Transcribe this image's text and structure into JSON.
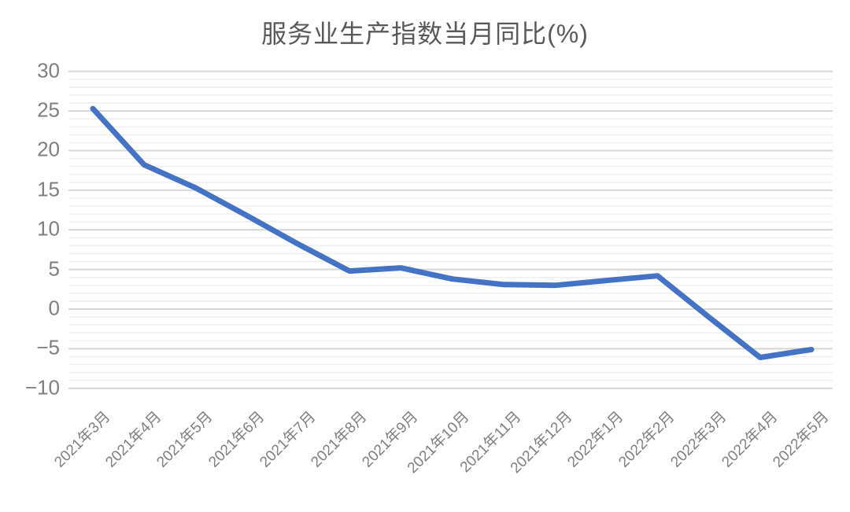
{
  "title": "服务业生产指数当月同比(%)",
  "colors": {
    "line": "#4472C4",
    "major_gridline": "#d6d6d6",
    "minor_gridline": "#efefef",
    "tick_text": "#7f7f7f",
    "title_text": "#595959",
    "background": "#ffffff"
  },
  "chart_data": {
    "type": "line",
    "title": "服务业生产指数当月同比(%)",
    "categories": [
      "2021年3月",
      "2021年4月",
      "2021年5月",
      "2021年6月",
      "2021年7月",
      "2021年8月",
      "2021年9月",
      "2021年10月",
      "2021年11月",
      "2021年12月",
      "2022年1月",
      "2022年2月",
      "2022年3月",
      "2022年4月",
      "2022年5月"
    ],
    "series": [
      {
        "name": "服务业生产指数当月同比(%)",
        "values": [
          25.3,
          18.2,
          15.3,
          11.8,
          8.2,
          4.8,
          5.2,
          3.8,
          3.1,
          3.0,
          3.6,
          4.2,
          -1.0,
          -6.1,
          -5.1
        ]
      }
    ],
    "xlabel": "",
    "ylabel": "",
    "ylim": [
      -10,
      30
    ],
    "major_ytick_step": 5,
    "minor_ytick_step": 1,
    "y_tick_labels": [
      "30",
      "25",
      "20",
      "15",
      "10",
      "5",
      "0",
      "−5",
      "−10"
    ],
    "grid": "major and minor horizontal gridlines",
    "legend_position": "none"
  }
}
